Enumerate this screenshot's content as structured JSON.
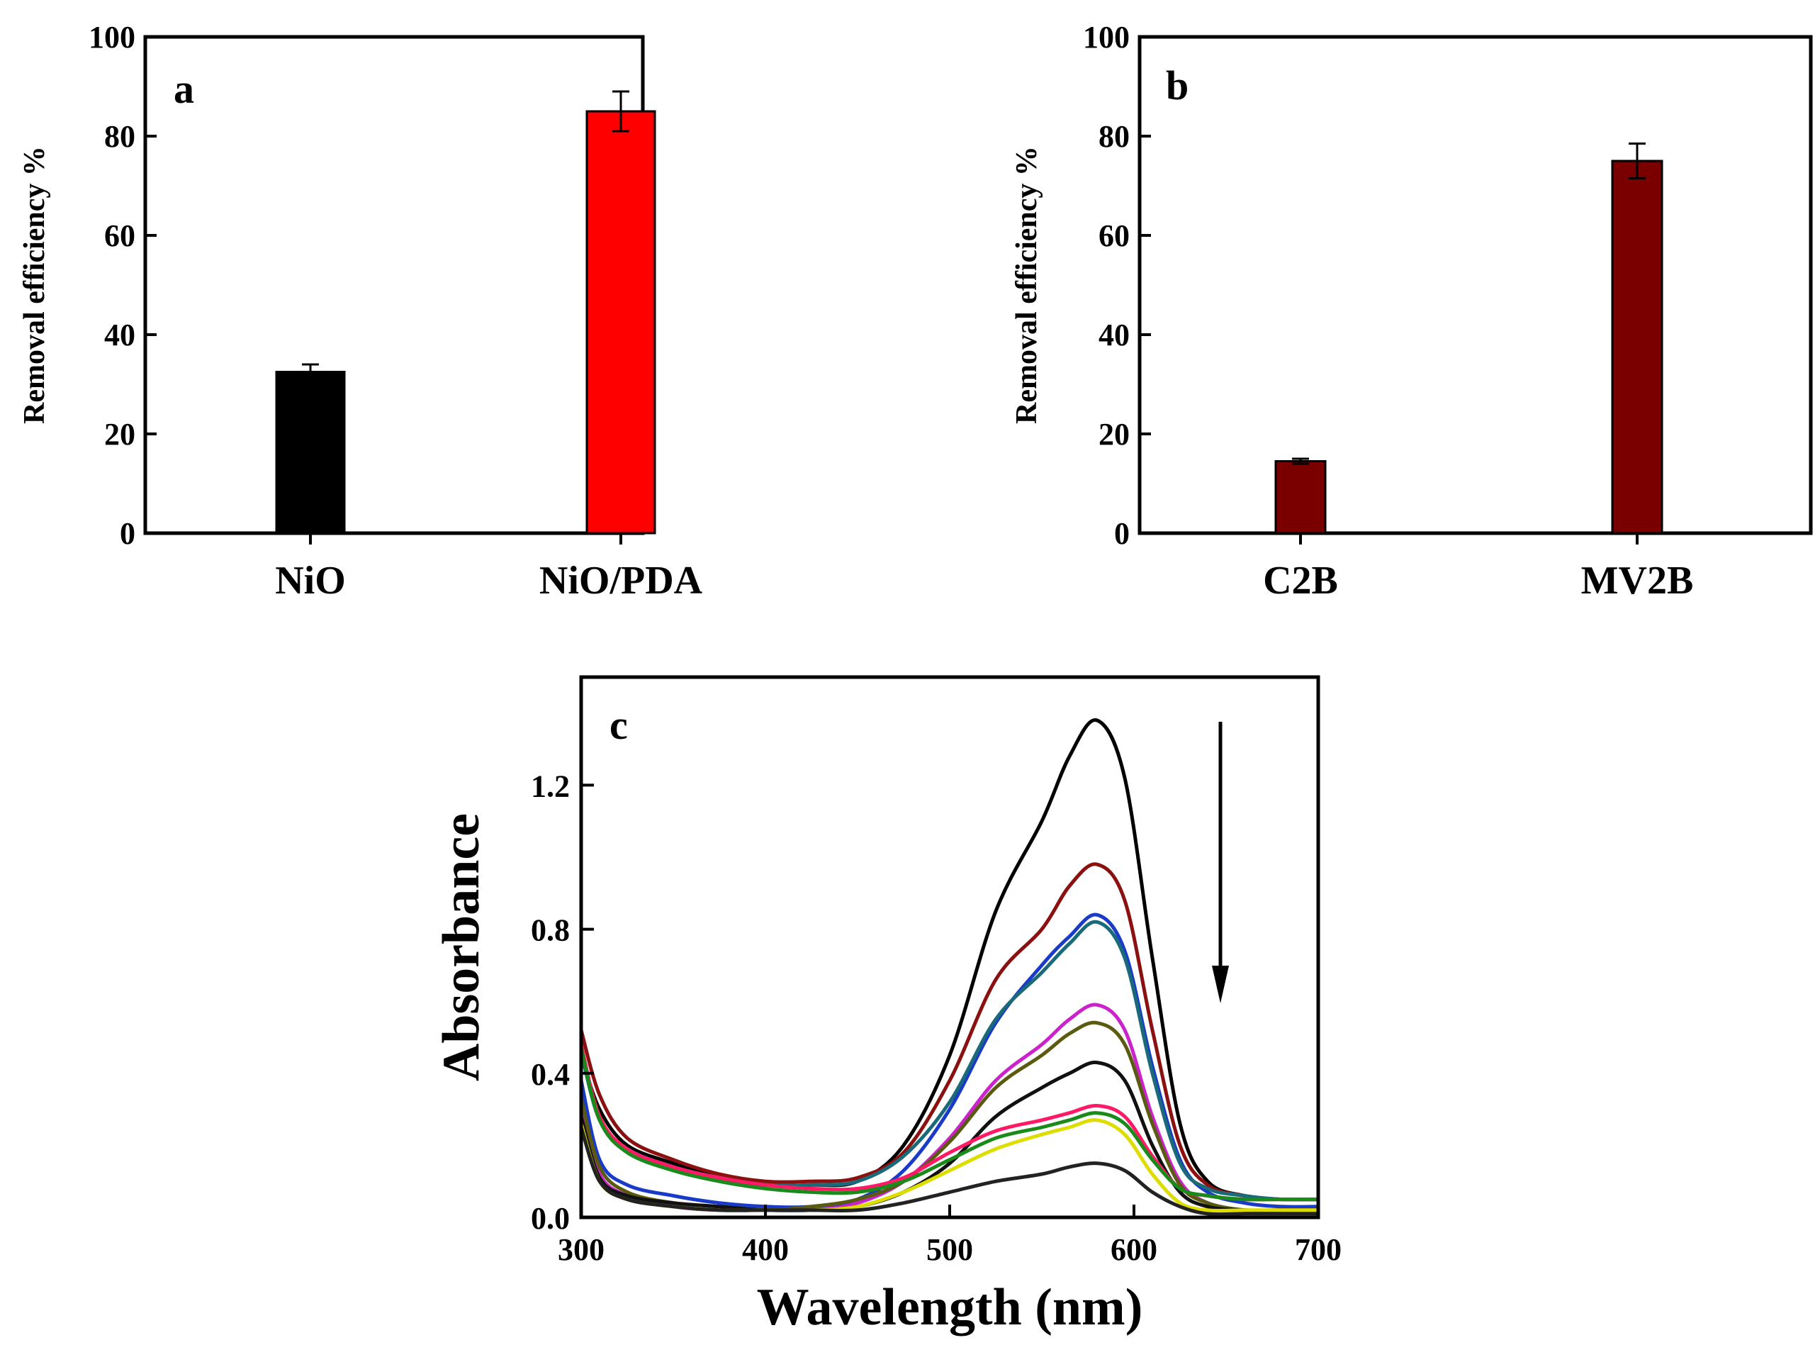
{
  "chart_data": [
    {
      "type": "bar",
      "panel_label": "a",
      "ylabel": "Removal efficiency %",
      "xlabel": "",
      "ylim": [
        0,
        100
      ],
      "yticks": [
        "0",
        "20",
        "40",
        "60",
        "80",
        "100"
      ],
      "categories": [
        "NiO",
        "NiO/PDA"
      ],
      "values": [
        32.5,
        85
      ],
      "errors": [
        1.5,
        4
      ],
      "colors": [
        "#000000",
        "#ff0000"
      ]
    },
    {
      "type": "bar",
      "panel_label": "b",
      "ylabel": "Removal efficiency %",
      "xlabel": "",
      "ylim": [
        0,
        100
      ],
      "yticks": [
        "0",
        "20",
        "40",
        "60",
        "80",
        "100"
      ],
      "categories": [
        "C2B",
        "MV2B"
      ],
      "values": [
        14.5,
        75
      ],
      "errors": [
        0.5,
        3.5
      ],
      "colors": [
        "#7a0000",
        "#7a0000"
      ]
    },
    {
      "type": "line",
      "panel_label": "c",
      "xlabel": "Wavelength (nm)",
      "ylabel": "Absorbance",
      "xlim": [
        300,
        700
      ],
      "ylim": [
        0,
        1.5
      ],
      "xticks": [
        "300",
        "400",
        "500",
        "600",
        "700"
      ],
      "yticks": [
        "0.0",
        "0.4",
        "0.8",
        "1.2"
      ],
      "annotation": "downward arrow indicating decreasing absorbance",
      "x": [
        300,
        310,
        325,
        350,
        375,
        400,
        425,
        450,
        475,
        500,
        525,
        550,
        565,
        580,
        595,
        610,
        625,
        640,
        660,
        680,
        700
      ],
      "series": [
        {
          "name": "curve 1",
          "color": "#000000",
          "values": [
            0.45,
            0.3,
            0.2,
            0.15,
            0.11,
            0.09,
            0.09,
            0.1,
            0.2,
            0.45,
            0.85,
            1.1,
            1.28,
            1.38,
            1.22,
            0.72,
            0.26,
            0.1,
            0.06,
            0.05,
            0.05
          ]
        },
        {
          "name": "curve 2",
          "color": "#8b1010",
          "values": [
            0.52,
            0.34,
            0.22,
            0.16,
            0.12,
            0.1,
            0.1,
            0.11,
            0.18,
            0.38,
            0.66,
            0.8,
            0.92,
            0.98,
            0.88,
            0.52,
            0.2,
            0.09,
            0.06,
            0.05,
            0.05
          ]
        },
        {
          "name": "curve 3",
          "color": "#1a3ac8",
          "values": [
            0.38,
            0.16,
            0.09,
            0.06,
            0.04,
            0.03,
            0.03,
            0.05,
            0.13,
            0.3,
            0.54,
            0.7,
            0.78,
            0.84,
            0.74,
            0.42,
            0.16,
            0.07,
            0.04,
            0.03,
            0.03
          ]
        },
        {
          "name": "curve 4",
          "color": "#1a6a7a",
          "values": [
            0.46,
            0.27,
            0.19,
            0.14,
            0.11,
            0.09,
            0.09,
            0.1,
            0.17,
            0.32,
            0.55,
            0.68,
            0.76,
            0.82,
            0.72,
            0.4,
            0.15,
            0.08,
            0.06,
            0.05,
            0.05
          ]
        },
        {
          "name": "curve 5",
          "color": "#cc22cc",
          "values": [
            0.3,
            0.12,
            0.06,
            0.03,
            0.02,
            0.02,
            0.02,
            0.04,
            0.1,
            0.22,
            0.38,
            0.48,
            0.55,
            0.59,
            0.52,
            0.28,
            0.1,
            0.04,
            0.02,
            0.02,
            0.02
          ]
        },
        {
          "name": "curve 6",
          "color": "#5a5a10",
          "values": [
            0.33,
            0.14,
            0.07,
            0.04,
            0.03,
            0.02,
            0.03,
            0.05,
            0.1,
            0.21,
            0.36,
            0.45,
            0.51,
            0.54,
            0.48,
            0.26,
            0.09,
            0.04,
            0.02,
            0.02,
            0.02
          ]
        },
        {
          "name": "curve 7",
          "color": "#111111",
          "values": [
            0.28,
            0.11,
            0.06,
            0.04,
            0.03,
            0.02,
            0.02,
            0.03,
            0.07,
            0.15,
            0.28,
            0.36,
            0.4,
            0.43,
            0.38,
            0.2,
            0.07,
            0.03,
            0.02,
            0.02,
            0.02
          ]
        },
        {
          "name": "curve 8",
          "color": "#ff1a66",
          "values": [
            0.48,
            0.28,
            0.19,
            0.14,
            0.11,
            0.09,
            0.08,
            0.08,
            0.11,
            0.18,
            0.24,
            0.27,
            0.29,
            0.31,
            0.28,
            0.17,
            0.08,
            0.06,
            0.05,
            0.05,
            0.05
          ]
        },
        {
          "name": "curve 9",
          "color": "#1a8a1a",
          "values": [
            0.47,
            0.27,
            0.18,
            0.13,
            0.1,
            0.08,
            0.07,
            0.07,
            0.1,
            0.16,
            0.22,
            0.25,
            0.27,
            0.29,
            0.26,
            0.16,
            0.08,
            0.06,
            0.05,
            0.05,
            0.05
          ]
        },
        {
          "name": "curve 10",
          "color": "#dddd00",
          "values": [
            0.26,
            0.1,
            0.05,
            0.03,
            0.02,
            0.02,
            0.02,
            0.03,
            0.07,
            0.13,
            0.19,
            0.23,
            0.25,
            0.27,
            0.23,
            0.12,
            0.04,
            0.02,
            0.02,
            0.02,
            0.02
          ]
        },
        {
          "name": "curve 11",
          "color": "#222222",
          "values": [
            0.25,
            0.1,
            0.05,
            0.03,
            0.02,
            0.02,
            0.02,
            0.02,
            0.04,
            0.07,
            0.1,
            0.12,
            0.14,
            0.15,
            0.13,
            0.07,
            0.03,
            0.01,
            0.01,
            0.01,
            0.01
          ]
        }
      ]
    }
  ]
}
